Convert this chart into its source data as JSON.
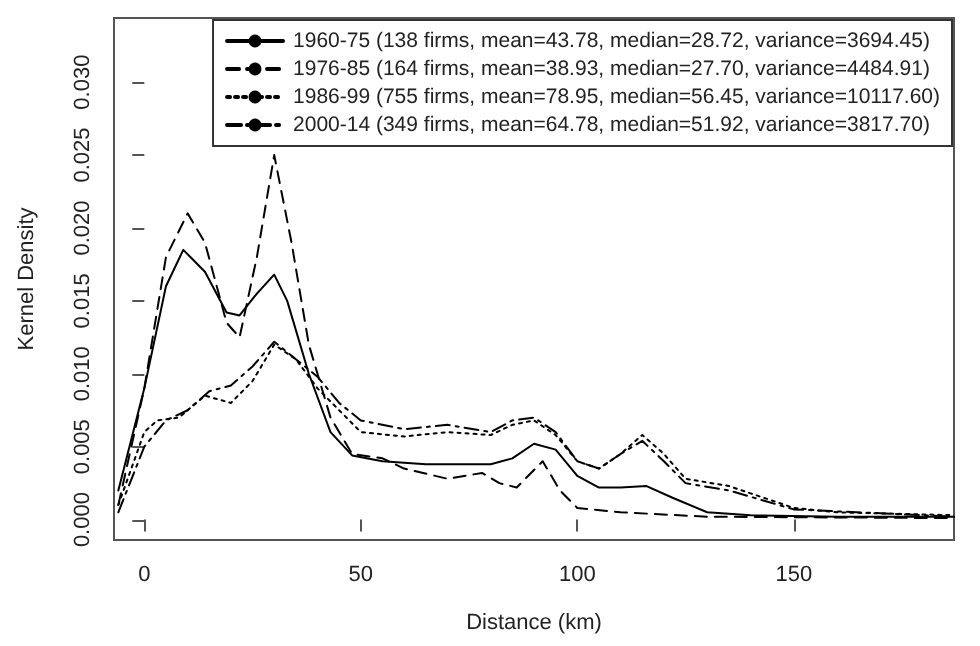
{
  "chart_data": {
    "type": "line",
    "xlabel": "Distance (km)",
    "ylabel": "Kernel Density",
    "xlim": [
      -7,
      187
    ],
    "xticks": [
      0,
      50,
      100,
      150
    ],
    "ylim": [
      -0.0014,
      0.0344
    ],
    "yticks": [
      {
        "value": 0,
        "label": "0.000"
      },
      {
        "value": 0.005,
        "label": "0.005"
      },
      {
        "value": 0.01,
        "label": "0.010"
      },
      {
        "value": 0.015,
        "label": "0.015"
      },
      {
        "value": 0.02,
        "label": "0.020"
      },
      {
        "value": 0.025,
        "label": "0.025"
      },
      {
        "value": 0.03,
        "label": "0.030"
      }
    ],
    "grid": false,
    "legend": "top right",
    "marker": "none",
    "series": [
      {
        "name": "1960-75 (138 firms, mean=43.78, median=28.72, variance=3694.45)",
        "color": "#000000",
        "line_style": "solid",
        "x": [
          -6,
          0,
          5,
          9,
          14,
          19,
          22,
          26,
          30,
          33,
          38,
          43,
          48,
          55,
          65,
          80,
          85,
          90,
          95,
          100,
          105,
          110,
          116,
          122,
          130,
          140,
          160,
          187
        ],
        "values": [
          0.002,
          0.009,
          0.016,
          0.0185,
          0.017,
          0.0142,
          0.014,
          0.0155,
          0.0168,
          0.015,
          0.01,
          0.006,
          0.0044,
          0.004,
          0.0038,
          0.0038,
          0.0042,
          0.0052,
          0.0048,
          0.003,
          0.0022,
          0.0022,
          0.0023,
          0.0015,
          0.0005,
          0.0003,
          0.0002,
          0.0002
        ]
      },
      {
        "name": "1976-85 (164 firms, mean=38.93, median=27.70, variance=4484.91)",
        "color": "#000000",
        "line_style": "dashed",
        "x": [
          -6,
          0,
          5,
          10,
          14,
          19,
          22,
          26,
          30,
          34,
          38,
          43,
          48,
          55,
          60,
          70,
          78,
          82,
          86,
          92,
          96,
          100,
          110,
          130,
          187
        ],
        "values": [
          0.001,
          0.009,
          0.018,
          0.021,
          0.019,
          0.0135,
          0.0125,
          0.018,
          0.025,
          0.019,
          0.012,
          0.007,
          0.0045,
          0.0042,
          0.0035,
          0.0028,
          0.0032,
          0.0025,
          0.0022,
          0.004,
          0.002,
          0.0008,
          0.0005,
          0.0002,
          0.0001
        ]
      },
      {
        "name": "1986-99 (755 firms, mean=78.95, median=56.45, variance=10117.60)",
        "color": "#000000",
        "line_style": "dotted",
        "x": [
          -6,
          0,
          3,
          8,
          14,
          20,
          25,
          30,
          35,
          40,
          45,
          50,
          60,
          70,
          80,
          85,
          90,
          95,
          100,
          105,
          110,
          115,
          120,
          125,
          135,
          140,
          150,
          160,
          187
        ],
        "values": [
          0.001,
          0.006,
          0.0068,
          0.007,
          0.0085,
          0.008,
          0.0095,
          0.012,
          0.011,
          0.009,
          0.0075,
          0.006,
          0.0057,
          0.006,
          0.0058,
          0.0065,
          0.0068,
          0.0058,
          0.004,
          0.0035,
          0.0045,
          0.0058,
          0.0045,
          0.0028,
          0.0023,
          0.0018,
          0.0008,
          0.0005,
          0.0003
        ]
      },
      {
        "name": "2000-14 (349 firms, mean=64.78, median=51.92, variance=3817.70)",
        "color": "#000000",
        "line_style": "dashdot",
        "x": [
          -6,
          0,
          5,
          10,
          15,
          20,
          25,
          30,
          35,
          40,
          45,
          50,
          60,
          70,
          80,
          85,
          90,
          95,
          100,
          105,
          110,
          115,
          120,
          125,
          135,
          150,
          187
        ],
        "values": [
          0.0005,
          0.005,
          0.0068,
          0.0075,
          0.0088,
          0.0092,
          0.0105,
          0.0122,
          0.011,
          0.0098,
          0.008,
          0.0068,
          0.0062,
          0.0065,
          0.006,
          0.0068,
          0.007,
          0.006,
          0.004,
          0.0035,
          0.0045,
          0.0054,
          0.004,
          0.0025,
          0.002,
          0.0007,
          0.0002
        ]
      }
    ]
  }
}
